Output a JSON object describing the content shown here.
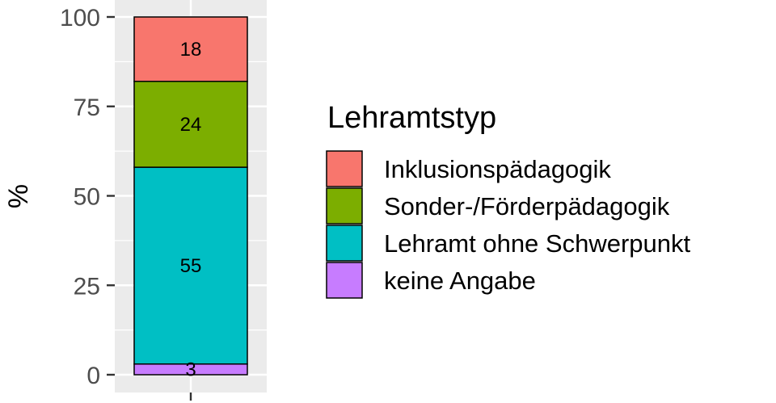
{
  "chart_data": {
    "type": "bar",
    "stacked": true,
    "categories": [
      ""
    ],
    "ylabel": "%",
    "xlabel": "",
    "ylim": [
      0,
      100
    ],
    "yticks": [
      0,
      25,
      50,
      75,
      100
    ],
    "grid": true,
    "legend": {
      "title": "Lehramtstyp",
      "position": "right"
    },
    "series": [
      {
        "name": "Inklusionspädagogik",
        "values": [
          18
        ],
        "color": "#F8766D",
        "label": "18"
      },
      {
        "name": "Sonder-/Förderpädagogik",
        "values": [
          24
        ],
        "color": "#7CAE00",
        "label": "24"
      },
      {
        "name": "Lehramt ohne Schwerpunkt",
        "values": [
          55
        ],
        "color": "#00BFC4",
        "label": "55"
      },
      {
        "name": "keine Angabe",
        "values": [
          3
        ],
        "color": "#C77CFF",
        "label": "3"
      }
    ],
    "panel_background": "#EBEBEB",
    "grid_color": "#FFFFFF"
  }
}
